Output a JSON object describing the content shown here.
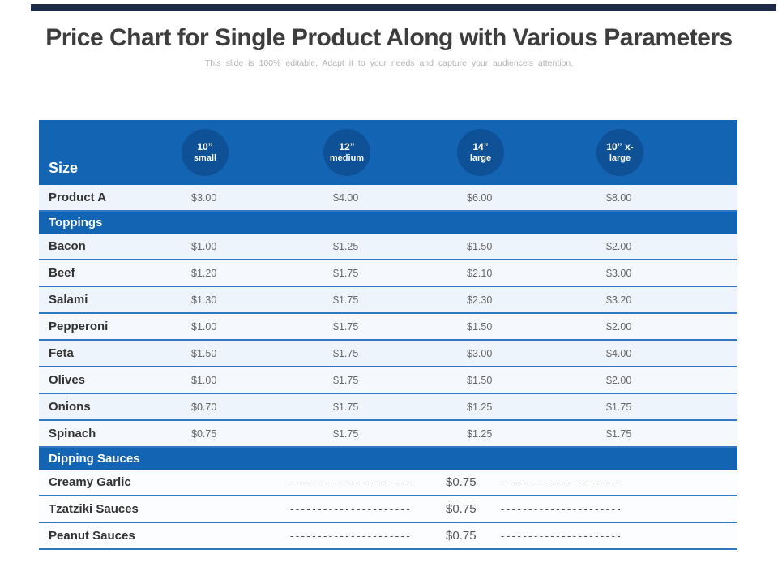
{
  "title": "Price Chart for Single Product Along with Various Parameters",
  "subtitle": "This slide is 100% editable. Adapt it to your needs and capture your audience's attention.",
  "colors": {
    "top_bar": "#1d2b49",
    "header_blue": "#1365b4",
    "badge_blue": "#0e5196",
    "row_line_blue": "#3277c2"
  },
  "table": {
    "size_label": "Size",
    "columns": [
      {
        "line1": "10”",
        "line2": "small"
      },
      {
        "line1": "12”",
        "line2": "medium"
      },
      {
        "line1": "14”",
        "line2": "large"
      },
      {
        "line1": "10” x-",
        "line2": "large"
      }
    ],
    "product_row": {
      "label": "Product A",
      "values": [
        "$3.00",
        "$4.00",
        "$6.00",
        "$8.00"
      ]
    },
    "toppings": {
      "title": "Toppings",
      "rows": [
        {
          "label": "Bacon",
          "values": [
            "$1.00",
            "$1.25",
            "$1.50",
            "$2.00"
          ]
        },
        {
          "label": "Beef",
          "values": [
            "$1.20",
            "$1.75",
            "$2.10",
            "$3.00"
          ]
        },
        {
          "label": "Salami",
          "values": [
            "$1.30",
            "$1.75",
            "$2.30",
            "$3.20"
          ]
        },
        {
          "label": "Pepperoni",
          "values": [
            "$1.00",
            "$1.75",
            "$1.50",
            "$2.00"
          ]
        },
        {
          "label": "Feta",
          "values": [
            "$1.50",
            "$1.75",
            "$3.00",
            "$4.00"
          ]
        },
        {
          "label": "Olives",
          "values": [
            "$1.00",
            "$1.75",
            "$1.50",
            "$2.00"
          ]
        },
        {
          "label": "Onions",
          "values": [
            "$0.70",
            "$1.75",
            "$1.25",
            "$1.75"
          ]
        },
        {
          "label": "Spinach",
          "values": [
            "$0.75",
            "$1.75",
            "$1.25",
            "$1.75"
          ]
        }
      ]
    },
    "dipping": {
      "title": "Dipping Sauces",
      "rows": [
        {
          "label": "Creamy Garlic",
          "dash_left": "----------------------",
          "price": "$0.75",
          "dash_right": "----------------------"
        },
        {
          "label": "Tzatziki Sauces",
          "dash_left": "----------------------",
          "price": "$0.75",
          "dash_right": "----------------------"
        },
        {
          "label": "Peanut Sauces",
          "dash_left": "----------------------",
          "price": "$0.75",
          "dash_right": "----------------------"
        }
      ]
    }
  }
}
